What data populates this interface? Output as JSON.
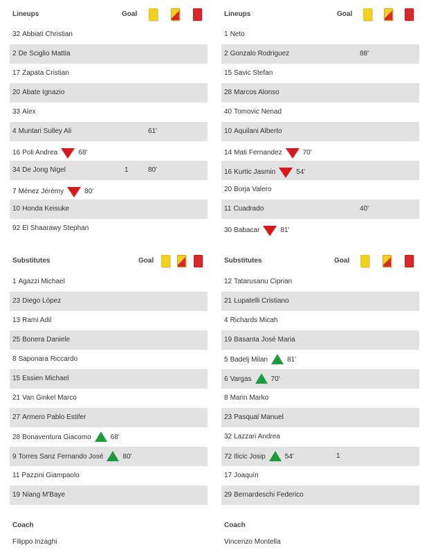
{
  "colors": {
    "row_shade": "#e2e2e2",
    "yellow_card": "#f2d21e",
    "red_card": "#d8282a",
    "sub_off": "#d7181b",
    "sub_on": "#1e9b3e"
  },
  "home": {
    "lineups": {
      "title": "Lineups",
      "goal_label": "Goal",
      "players": [
        {
          "num": "32",
          "name": "Abbiati Christian",
          "goals": "",
          "yellow": "",
          "sub_off": "",
          "sub_on": ""
        },
        {
          "num": "2",
          "name": "De Sciglio Mattia",
          "goals": "",
          "yellow": "",
          "sub_off": "",
          "sub_on": ""
        },
        {
          "num": "17",
          "name": "Zapata Cristian",
          "goals": "",
          "yellow": "",
          "sub_off": "",
          "sub_on": ""
        },
        {
          "num": "20",
          "name": "Abate Ignazio",
          "goals": "",
          "yellow": "",
          "sub_off": "",
          "sub_on": ""
        },
        {
          "num": "33",
          "name": "Alex",
          "goals": "",
          "yellow": "",
          "sub_off": "",
          "sub_on": ""
        },
        {
          "num": "4",
          "name": "Muntari Sulley Ali",
          "goals": "",
          "yellow": "61'",
          "sub_off": "",
          "sub_on": ""
        },
        {
          "num": "16",
          "name": "Poli Andrea",
          "goals": "",
          "yellow": "",
          "sub_off": "68'",
          "sub_on": ""
        },
        {
          "num": "34",
          "name": "De Jong Nigel",
          "goals": "1",
          "yellow": "80'",
          "sub_off": "",
          "sub_on": ""
        },
        {
          "num": "7",
          "name": "Ménez Jérémy",
          "goals": "",
          "yellow": "",
          "sub_off": "80'",
          "sub_on": ""
        },
        {
          "num": "10",
          "name": "Honda Keisuke",
          "goals": "",
          "yellow": "",
          "sub_off": "",
          "sub_on": ""
        },
        {
          "num": "92",
          "name": "El Shaarawy Stephan",
          "goals": "",
          "yellow": "",
          "sub_off": "",
          "sub_on": ""
        }
      ]
    },
    "substitutes": {
      "title": "Substitutes",
      "goal_label": "Goal",
      "players": [
        {
          "num": "1",
          "name": "Agazzi Michael",
          "goals": "",
          "yellow": "",
          "sub_off": "",
          "sub_on": ""
        },
        {
          "num": "23",
          "name": "Diego López",
          "goals": "",
          "yellow": "",
          "sub_off": "",
          "sub_on": ""
        },
        {
          "num": "13",
          "name": "Rami Adil",
          "goals": "",
          "yellow": "",
          "sub_off": "",
          "sub_on": ""
        },
        {
          "num": "25",
          "name": "Bonera Daniele",
          "goals": "",
          "yellow": "",
          "sub_off": "",
          "sub_on": ""
        },
        {
          "num": "8",
          "name": "Saponara Riccardo",
          "goals": "",
          "yellow": "",
          "sub_off": "",
          "sub_on": ""
        },
        {
          "num": "15",
          "name": "Essien Michael",
          "goals": "",
          "yellow": "",
          "sub_off": "",
          "sub_on": ""
        },
        {
          "num": "21",
          "name": "Van Ginkel Marco",
          "goals": "",
          "yellow": "",
          "sub_off": "",
          "sub_on": ""
        },
        {
          "num": "27",
          "name": "Armero Pablo Estifer",
          "goals": "",
          "yellow": "",
          "sub_off": "",
          "sub_on": ""
        },
        {
          "num": "28",
          "name": "Bonaventura Giacomo",
          "goals": "",
          "yellow": "",
          "sub_off": "",
          "sub_on": "68'"
        },
        {
          "num": "9",
          "name": "Torres Sanz Fernando José",
          "goals": "",
          "yellow": "",
          "sub_off": "",
          "sub_on": "80'"
        },
        {
          "num": "11",
          "name": "Pazzini Giampaolo",
          "goals": "",
          "yellow": "",
          "sub_off": "",
          "sub_on": ""
        },
        {
          "num": "19",
          "name": "Niang M'Baye",
          "goals": "",
          "yellow": "",
          "sub_off": "",
          "sub_on": ""
        }
      ]
    },
    "coach": {
      "label": "Coach",
      "name": "Filippo Inzaghi"
    }
  },
  "away": {
    "lineups": {
      "title": "Lineups",
      "goal_label": "Goal",
      "players": [
        {
          "num": "1",
          "name": "Neto",
          "goals": "",
          "yellow": "",
          "sub_off": "",
          "sub_on": ""
        },
        {
          "num": "2",
          "name": "Gonzalo Rodriguez",
          "goals": "",
          "yellow": "88'",
          "sub_off": "",
          "sub_on": ""
        },
        {
          "num": "15",
          "name": "Savic Stefan",
          "goals": "",
          "yellow": "",
          "sub_off": "",
          "sub_on": ""
        },
        {
          "num": "28",
          "name": "Marcos Alonso",
          "goals": "",
          "yellow": "",
          "sub_off": "",
          "sub_on": ""
        },
        {
          "num": "40",
          "name": "Tomovic Nenad",
          "goals": "",
          "yellow": "",
          "sub_off": "",
          "sub_on": ""
        },
        {
          "num": "10",
          "name": "Aquilani Alberto",
          "goals": "",
          "yellow": "",
          "sub_off": "",
          "sub_on": ""
        },
        {
          "num": "14",
          "name": "Mati Fernandez",
          "goals": "",
          "yellow": "",
          "sub_off": "70'",
          "sub_on": ""
        },
        {
          "num": "16",
          "name": "Kurtic Jasmin",
          "goals": "",
          "yellow": "",
          "sub_off": "54'",
          "sub_on": ""
        },
        {
          "num": "20",
          "name": "Borja Valero",
          "goals": "",
          "yellow": "",
          "sub_off": "",
          "sub_on": ""
        },
        {
          "num": "11",
          "name": "Cuadrado",
          "goals": "",
          "yellow": "40'",
          "sub_off": "",
          "sub_on": ""
        },
        {
          "num": "30",
          "name": "Babacar",
          "goals": "",
          "yellow": "",
          "sub_off": "81'",
          "sub_on": ""
        }
      ]
    },
    "substitutes": {
      "title": "Substitutes",
      "goal_label": "Goal",
      "players": [
        {
          "num": "12",
          "name": "Tatarusanu Ciprian",
          "goals": "",
          "yellow": "",
          "sub_off": "",
          "sub_on": ""
        },
        {
          "num": "21",
          "name": "Lupatelli Cristiano",
          "goals": "",
          "yellow": "",
          "sub_off": "",
          "sub_on": ""
        },
        {
          "num": "4",
          "name": "Richards Micah",
          "goals": "",
          "yellow": "",
          "sub_off": "",
          "sub_on": ""
        },
        {
          "num": "19",
          "name": "Basanta José Maria",
          "goals": "",
          "yellow": "",
          "sub_off": "",
          "sub_on": ""
        },
        {
          "num": "5",
          "name": "Badelj Milan",
          "goals": "",
          "yellow": "",
          "sub_off": "",
          "sub_on": "81'"
        },
        {
          "num": "6",
          "name": "Vargas",
          "goals": "",
          "yellow": "",
          "sub_off": "",
          "sub_on": "70'"
        },
        {
          "num": "8",
          "name": "Marin Marko",
          "goals": "",
          "yellow": "",
          "sub_off": "",
          "sub_on": ""
        },
        {
          "num": "23",
          "name": "Pasqual Manuel",
          "goals": "",
          "yellow": "",
          "sub_off": "",
          "sub_on": ""
        },
        {
          "num": "32",
          "name": "Lazzari Andrea",
          "goals": "",
          "yellow": "",
          "sub_off": "",
          "sub_on": ""
        },
        {
          "num": "72",
          "name": "Ilicic Josip",
          "goals": "1",
          "yellow": "",
          "sub_off": "",
          "sub_on": "54'"
        },
        {
          "num": "17",
          "name": "Joaquín",
          "goals": "",
          "yellow": "",
          "sub_off": "",
          "sub_on": ""
        },
        {
          "num": "29",
          "name": "Bernardeschi Federico",
          "goals": "",
          "yellow": "",
          "sub_off": "",
          "sub_on": ""
        }
      ]
    },
    "coach": {
      "label": "Coach",
      "name": "Vincenzo Montella"
    }
  }
}
